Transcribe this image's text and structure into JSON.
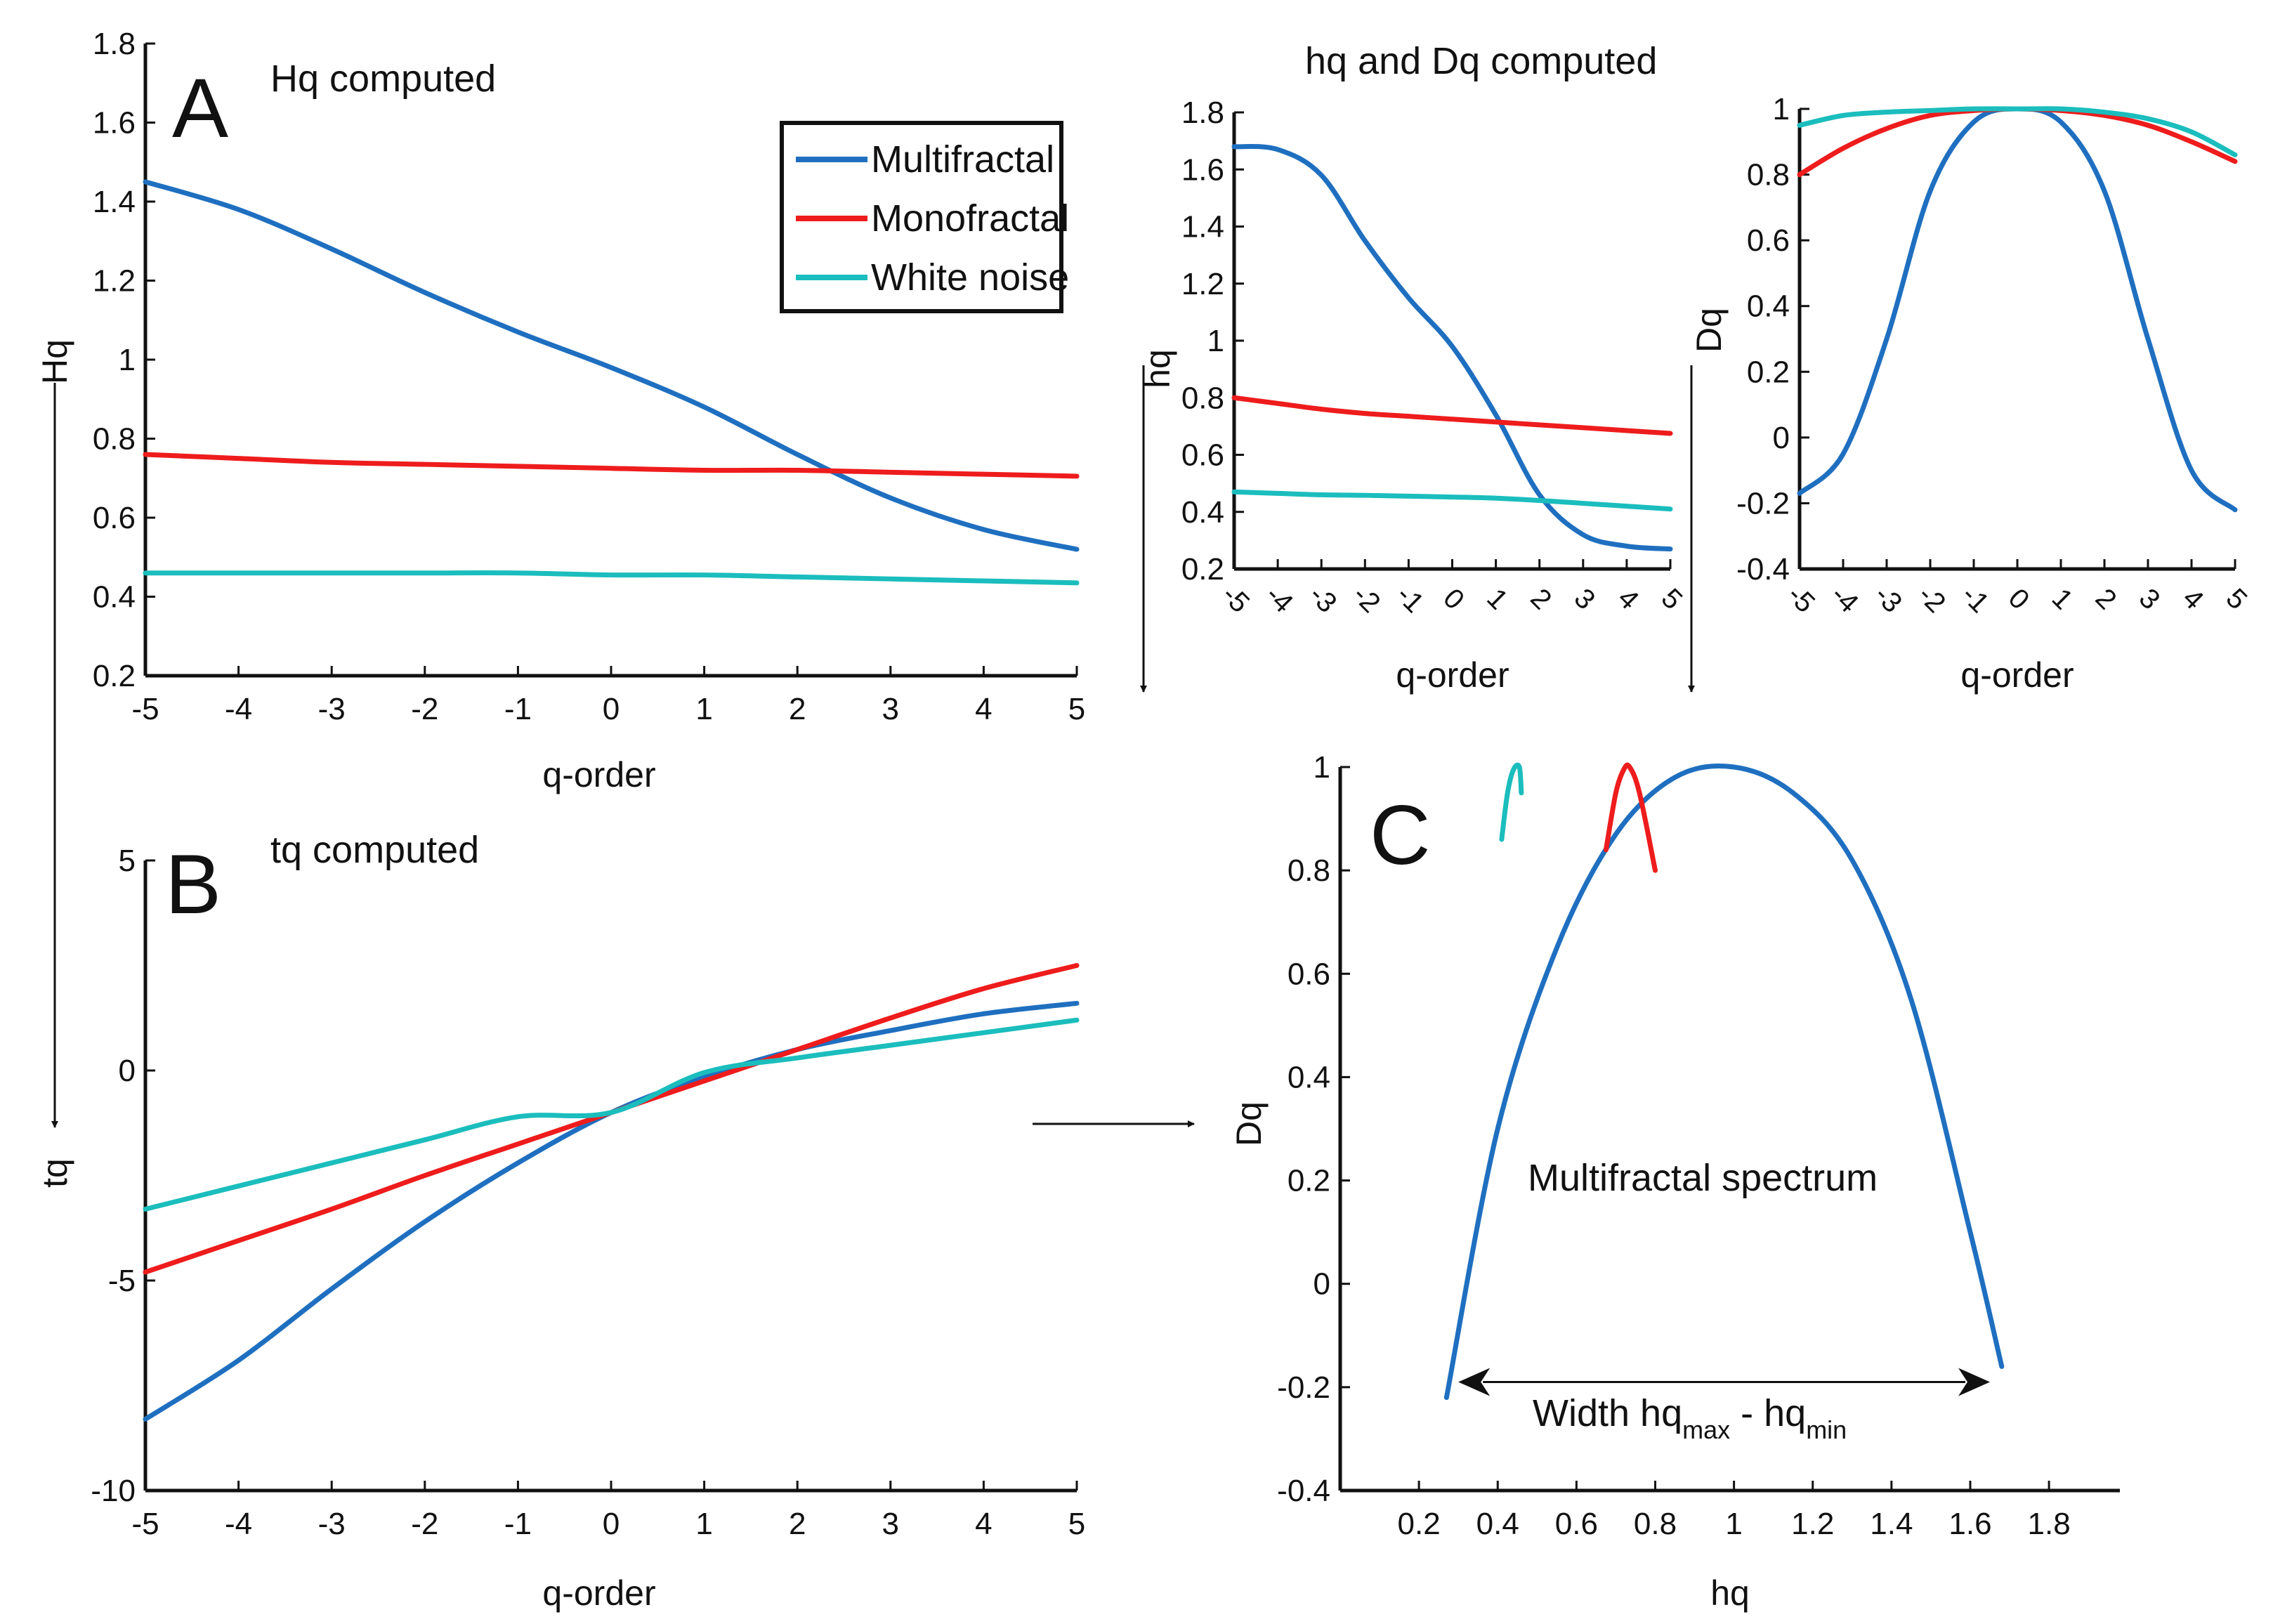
{
  "colors": {
    "multifractal": "#1f6fc0",
    "monofractal": "#ee1c1c",
    "white_noise": "#1bbdbd"
  },
  "chart_data": [
    {
      "id": "A",
      "type": "line",
      "letter": "A",
      "title": "Hq computed",
      "xlabel": "q-order",
      "ylabel": "Hq",
      "xlim": [
        -5,
        5
      ],
      "ylim": [
        0.2,
        1.8
      ],
      "xticks": [
        -5,
        -4,
        -3,
        -2,
        -1,
        0,
        1,
        2,
        3,
        4,
        5
      ],
      "yticks": [
        0.2,
        0.4,
        0.6,
        0.8,
        1,
        1.2,
        1.4,
        1.6,
        1.8
      ],
      "x": [
        -5,
        -4,
        -3,
        -2,
        -1,
        0,
        1,
        2,
        3,
        4,
        5
      ],
      "series": [
        {
          "name": "Multifractal",
          "color": "#1f6fc0",
          "values": [
            1.45,
            1.38,
            1.28,
            1.17,
            1.07,
            0.98,
            0.88,
            0.76,
            0.65,
            0.57,
            0.52
          ]
        },
        {
          "name": "Monofractal",
          "color": "#ee1c1c",
          "values": [
            0.76,
            0.75,
            0.74,
            0.735,
            0.73,
            0.725,
            0.72,
            0.72,
            0.715,
            0.71,
            0.705
          ]
        },
        {
          "name": "White noise",
          "color": "#1bbdbd",
          "values": [
            0.46,
            0.46,
            0.46,
            0.46,
            0.46,
            0.455,
            0.455,
            0.45,
            0.445,
            0.44,
            0.435
          ]
        }
      ],
      "legend": [
        "Multifractal",
        "Monofractal",
        "White noise"
      ],
      "legend_position": "top-right"
    },
    {
      "id": "B",
      "type": "line",
      "letter": "B",
      "title": "tq computed",
      "xlabel": "q-order",
      "ylabel": "tq",
      "xlim": [
        -5,
        5
      ],
      "ylim": [
        -10,
        5
      ],
      "xticks": [
        -5,
        -4,
        -3,
        -2,
        -1,
        0,
        1,
        2,
        3,
        4,
        5
      ],
      "yticks": [
        -10,
        -5,
        0,
        5
      ],
      "x": [
        -5,
        -4,
        -3,
        -2,
        -1,
        0,
        1,
        2,
        3,
        4,
        5
      ],
      "series": [
        {
          "name": "Multifractal",
          "color": "#1f6fc0",
          "values": [
            -8.3,
            -6.9,
            -5.2,
            -3.6,
            -2.2,
            -1.0,
            -0.15,
            0.5,
            0.95,
            1.35,
            1.6
          ]
        },
        {
          "name": "Monofractal",
          "color": "#ee1c1c",
          "values": [
            -4.8,
            -4.05,
            -3.3,
            -2.5,
            -1.75,
            -1.0,
            -0.25,
            0.5,
            1.25,
            1.95,
            2.5
          ]
        },
        {
          "name": "White noise",
          "color": "#1bbdbd",
          "values": [
            -3.3,
            -2.75,
            -2.2,
            -1.65,
            -1.1,
            -1.0,
            -0.05,
            0.3,
            0.6,
            0.9,
            1.2
          ]
        }
      ]
    },
    {
      "id": "hq",
      "type": "line",
      "title": "hq and Dq computed",
      "xlabel": "q-order",
      "ylabel": "hq",
      "xlim": [
        -5,
        5
      ],
      "ylim": [
        0.2,
        1.8
      ],
      "xticks": [
        -5,
        -4,
        -3,
        -2,
        -1,
        0,
        1,
        2,
        3,
        4,
        5
      ],
      "xticklabels": [
        "-5",
        "-4",
        "-3",
        "-2",
        "-1",
        "0",
        "1",
        "2",
        "3",
        "4",
        "5"
      ],
      "yticks": [
        0.2,
        0.4,
        0.6,
        0.8,
        1,
        1.2,
        1.4,
        1.6,
        1.8
      ],
      "x": [
        -5,
        -4,
        -3,
        -2,
        -1,
        0,
        1,
        2,
        3,
        4,
        5
      ],
      "series": [
        {
          "name": "Multifractal",
          "color": "#1f6fc0",
          "values": [
            1.68,
            1.67,
            1.58,
            1.35,
            1.15,
            0.98,
            0.74,
            0.46,
            0.32,
            0.28,
            0.27
          ]
        },
        {
          "name": "Monofractal",
          "color": "#ee1c1c",
          "values": [
            0.8,
            0.78,
            0.76,
            0.745,
            0.735,
            0.725,
            0.715,
            0.705,
            0.695,
            0.685,
            0.675
          ]
        },
        {
          "name": "White noise",
          "color": "#1bbdbd",
          "values": [
            0.47,
            0.465,
            0.46,
            0.458,
            0.455,
            0.452,
            0.448,
            0.44,
            0.43,
            0.42,
            0.41
          ]
        }
      ]
    },
    {
      "id": "Dq",
      "type": "line",
      "xlabel": "q-order",
      "ylabel": "Dq",
      "xlim": [
        -5,
        5
      ],
      "ylim": [
        -0.4,
        1
      ],
      "xticks": [
        -5,
        -4,
        -3,
        -2,
        -1,
        0,
        1,
        2,
        3,
        4,
        5
      ],
      "xticklabels": [
        "-5",
        "-4",
        "-3",
        "-2",
        "-1",
        "0",
        "1",
        "2",
        "3",
        "4",
        "5"
      ],
      "yticks": [
        -0.4,
        -0.2,
        0,
        0.2,
        0.4,
        0.6,
        0.8,
        1
      ],
      "x": [
        -5,
        -4,
        -3,
        -2,
        -1,
        0,
        1,
        2,
        3,
        4,
        5
      ],
      "series": [
        {
          "name": "Multifractal",
          "color": "#1f6fc0",
          "values": [
            -0.17,
            -0.05,
            0.3,
            0.75,
            0.96,
            1.0,
            0.96,
            0.75,
            0.3,
            -0.1,
            -0.22
          ]
        },
        {
          "name": "Monofractal",
          "color": "#ee1c1c",
          "values": [
            0.8,
            0.88,
            0.94,
            0.98,
            0.995,
            1.0,
            0.995,
            0.98,
            0.95,
            0.9,
            0.84
          ]
        },
        {
          "name": "White noise",
          "color": "#1bbdbd",
          "values": [
            0.95,
            0.98,
            0.99,
            0.995,
            1.0,
            1.0,
            1.0,
            0.99,
            0.97,
            0.93,
            0.86
          ]
        }
      ]
    },
    {
      "id": "C",
      "type": "line",
      "letter": "C",
      "title": "",
      "xlabel": "hq",
      "ylabel": "Dq",
      "xlim": [
        0,
        1.98
      ],
      "ylim": [
        -0.4,
        1
      ],
      "xticks": [
        0.2,
        0.4,
        0.6,
        0.8,
        1,
        1.2,
        1.4,
        1.6,
        1.8
      ],
      "yticks": [
        -0.4,
        -0.2,
        0,
        0.2,
        0.4,
        0.6,
        0.8,
        1
      ],
      "series": [
        {
          "name": "Multifractal",
          "color": "#1f6fc0",
          "x": [
            0.27,
            0.4,
            0.55,
            0.7,
            0.85,
            1.0,
            1.15,
            1.3,
            1.45,
            1.6,
            1.68
          ],
          "values": [
            -0.22,
            0.3,
            0.65,
            0.87,
            0.98,
            1.0,
            0.95,
            0.82,
            0.55,
            0.1,
            -0.16
          ]
        },
        {
          "name": "Monofractal",
          "color": "#ee1c1c",
          "x": [
            0.675,
            0.7,
            0.72,
            0.735,
            0.76,
            0.8
          ],
          "values": [
            0.84,
            0.95,
            0.995,
            1.0,
            0.95,
            0.8
          ]
        },
        {
          "name": "White noise",
          "color": "#1bbdbd",
          "x": [
            0.41,
            0.425,
            0.44,
            0.455,
            0.46
          ],
          "values": [
            0.86,
            0.95,
            0.995,
            1.0,
            0.95
          ]
        }
      ],
      "annotations": {
        "spectrum_label": "Multifractal spectrum",
        "width_label": "Width hq",
        "width_sub_max": "max",
        "width_dash": " - hq",
        "width_sub_min": "min",
        "width_arrow": [
          0.3,
          1.65,
          -0.19
        ]
      }
    }
  ]
}
